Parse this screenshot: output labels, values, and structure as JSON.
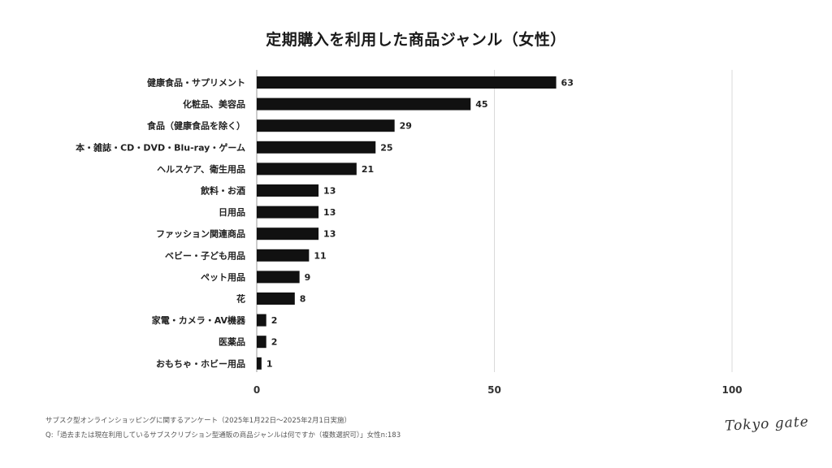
{
  "chart_data": {
    "type": "bar",
    "orientation": "horizontal",
    "title": "定期購入を利用した商品ジャンル（女性）",
    "categories": [
      "健康食品・サプリメント",
      "化粧品、美容品",
      "食品（健康食品を除く）",
      "本・雑誌・CD・DVD・Blu-ray・ゲーム",
      "ヘルスケア、衛生用品",
      "飲料・お酒",
      "日用品",
      "ファッション関連商品",
      "ベビー・子ども用品",
      "ペット用品",
      "花",
      "家電・カメラ・AV機器",
      "医薬品",
      "おもちゃ・ホビー用品"
    ],
    "values": [
      63,
      45,
      29,
      25,
      21,
      13,
      13,
      13,
      11,
      9,
      8,
      2,
      2,
      1
    ],
    "xlim": [
      0,
      100
    ],
    "xticks": [
      0,
      50,
      100
    ],
    "grid": true,
    "bar_color": "#111111"
  },
  "footnotes": {
    "survey": "サブスク型オンラインショッピングに関するアンケート（2025年1月22日〜2025年2月1日実施）",
    "question": "Q:「過去または現在利用しているサブスクリプション型通販の商品ジャンルは何ですか（複数選択可）」女性n:183"
  },
  "logo": {
    "text": "Tokyo gate"
  }
}
